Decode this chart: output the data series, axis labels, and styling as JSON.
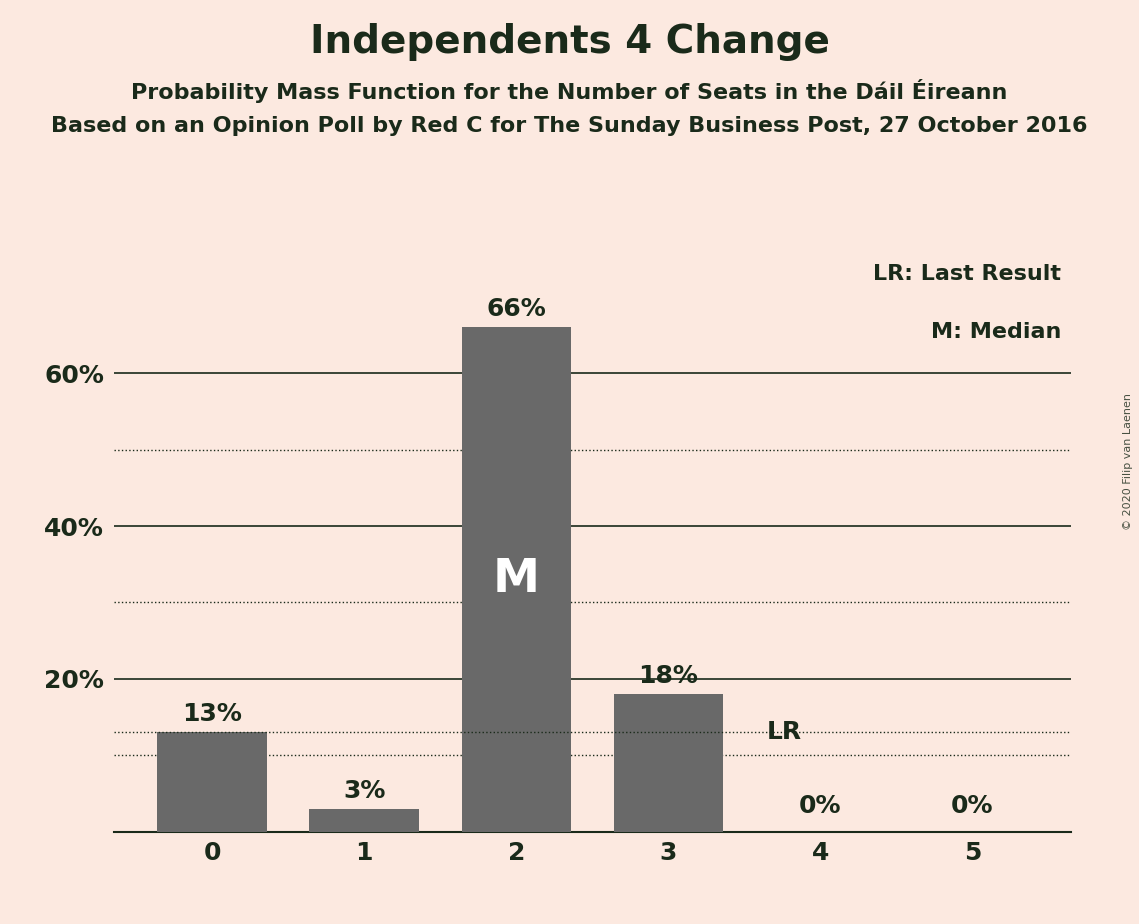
{
  "title": "Independents 4 Change",
  "subtitle1": "Probability Mass Function for the Number of Seats in the Dáil Éireann",
  "subtitle2": "Based on an Opinion Poll by Red C for The Sunday Business Post, 27 October 2016",
  "watermark": "© 2020 Filip van Laenen",
  "categories": [
    0,
    1,
    2,
    3,
    4,
    5
  ],
  "values": [
    0.13,
    0.03,
    0.66,
    0.18,
    0.0,
    0.0
  ],
  "labels": [
    "13%",
    "3%",
    "66%",
    "18%",
    "0%",
    "0%"
  ],
  "bar_color": "#696969",
  "background_color": "#fce9e0",
  "median_bar": 2,
  "median_label": "M",
  "last_result": 4,
  "lr_value": 0.13,
  "legend_lr": "LR: Last Result",
  "legend_m": "M: Median",
  "yticks_solid": [
    0.0,
    0.2,
    0.4,
    0.6
  ],
  "ytick_labels_solid": [
    "",
    "20%",
    "40%",
    "60%"
  ],
  "yticks_dotted": [
    0.1,
    0.3,
    0.5
  ],
  "ylim": [
    0,
    0.75
  ],
  "title_fontsize": 28,
  "subtitle_fontsize": 16,
  "tick_fontsize": 18,
  "label_fontsize": 18,
  "legend_fontsize": 16,
  "bar_width": 0.72,
  "text_color": "#1a2a1a"
}
